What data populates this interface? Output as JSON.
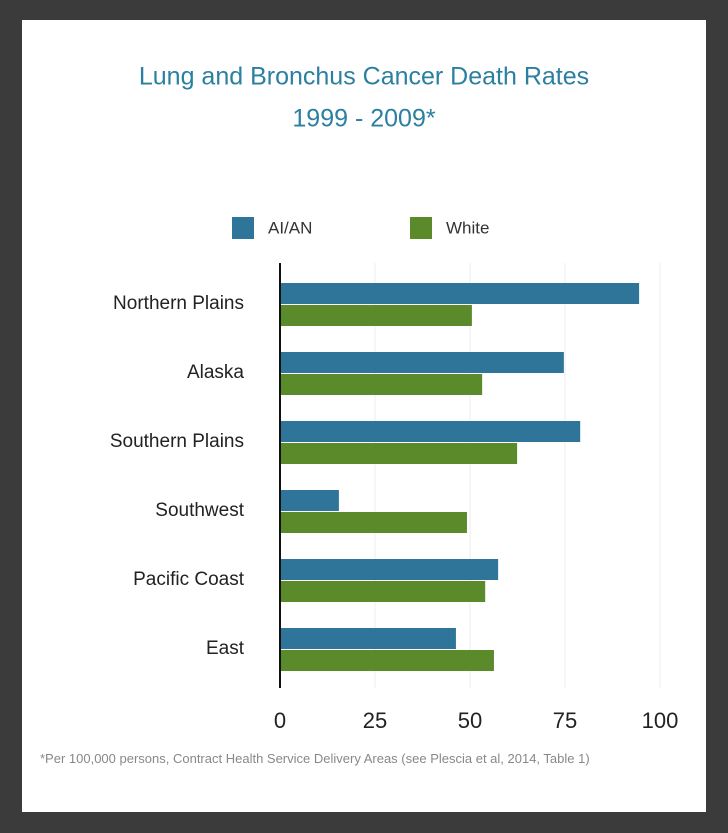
{
  "chart_data": {
    "type": "bar",
    "orientation": "horizontal",
    "title": "Lung and Bronchus Cancer Death Rates",
    "subtitle": "1999 - 2009*",
    "categories": [
      "Northern Plains",
      "Alaska",
      "Southern Plains",
      "Southwest",
      "Pacific Coast",
      "East"
    ],
    "series": [
      {
        "name": "AI/AN",
        "color": "#2e7599",
        "values": [
          94.5,
          74.7,
          79,
          15.5,
          57.4,
          46.3
        ]
      },
      {
        "name": "White",
        "color": "#5a8a2a",
        "values": [
          50.5,
          53.2,
          62.4,
          49.2,
          54,
          56.3
        ]
      }
    ],
    "xlim": [
      0,
      100
    ],
    "xticks": [
      0,
      25,
      50,
      75,
      100
    ],
    "grid": true,
    "footnote": "*Per 100,000 persons, Contract Health Service Delivery Areas (see Plescia et al, 2014, Table 1)"
  }
}
